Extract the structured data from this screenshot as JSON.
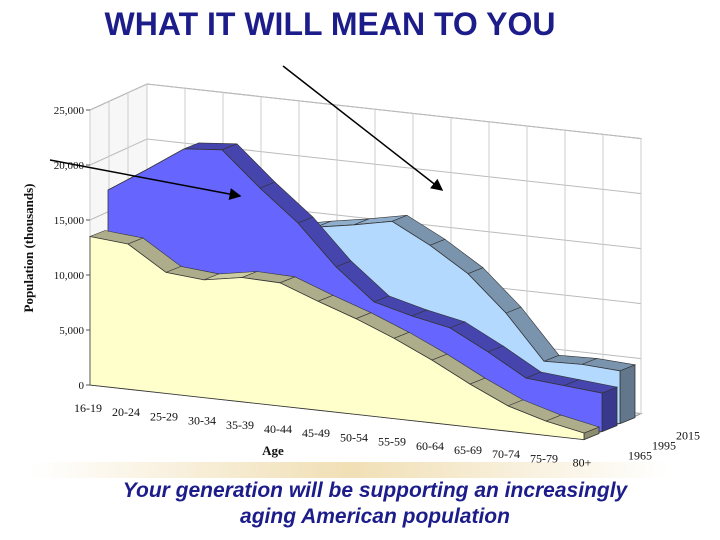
{
  "slide": {
    "title": "WHAT IT WILL MEAN TO YOU",
    "caption_line1": "Your generation will be supporting an increasingly",
    "caption_line2": "aging American population"
  },
  "chart_data": {
    "type": "area",
    "title": "",
    "xlabel": "Age",
    "ylabel": "Population (thousands)",
    "ylim": [
      0,
      25000
    ],
    "y_ticks": [
      "0",
      "5,000",
      "10,000",
      "15,000",
      "20,000",
      "25,000"
    ],
    "categories": [
      "16-19",
      "20-24",
      "25-29",
      "30-34",
      "35-39",
      "40-44",
      "45-49",
      "50-54",
      "55-59",
      "60-64",
      "65-69",
      "70-74",
      "75-79",
      "80+"
    ],
    "depth_labels": [
      "1965",
      "1995",
      "2015"
    ],
    "series": [
      {
        "name": "1965",
        "values": [
          13500,
          13200,
          11000,
          10700,
          11300,
          11200,
          9900,
          8700,
          7300,
          5700,
          3900,
          2300,
          1300,
          600
        ],
        "color": "#ffffcc"
      },
      {
        "name": "1995",
        "values": [
          17000,
          19200,
          21500,
          21800,
          18700,
          15900,
          12300,
          9500,
          8600,
          7900,
          6100,
          4100,
          3800,
          3500
        ],
        "color": "#6666ff"
      },
      {
        "name": "2015",
        "values": [
          15500,
          18500,
          18000,
          18200,
          14100,
          14800,
          15400,
          16100,
          14300,
          12100,
          8900,
          4900,
          5000,
          4800
        ],
        "color": "#b3d9ff"
      }
    ],
    "grid": true,
    "annotations": [
      {
        "type": "arrow",
        "target_series": "1995"
      },
      {
        "type": "arrow",
        "target_series": "2015"
      }
    ]
  }
}
